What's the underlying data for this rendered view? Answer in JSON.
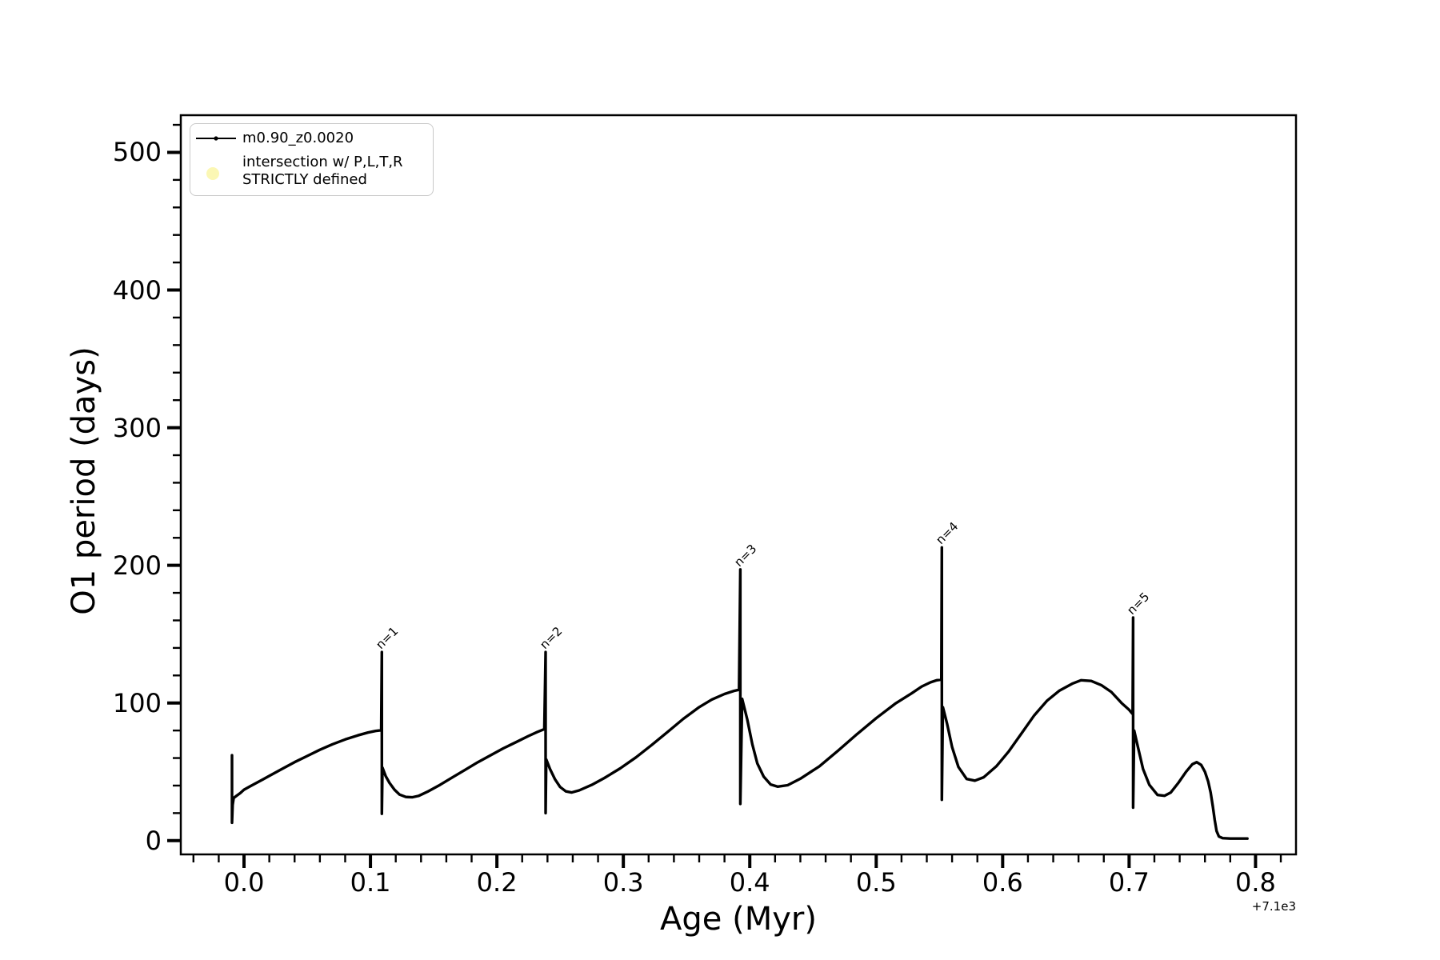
{
  "chart_data": {
    "type": "line",
    "title": "",
    "xlabel": "Age (Myr)",
    "ylabel": "O1 period (days)",
    "x_offset_text": "+7.1e3",
    "xlim": [
      -0.05,
      0.832
    ],
    "ylim": [
      -10,
      527
    ],
    "grid": false,
    "legend_position": "upper left",
    "x_ticks": [
      {
        "v": 0.0,
        "label": "0.0"
      },
      {
        "v": 0.1,
        "label": "0.1"
      },
      {
        "v": 0.2,
        "label": "0.2"
      },
      {
        "v": 0.3,
        "label": "0.3"
      },
      {
        "v": 0.4,
        "label": "0.4"
      },
      {
        "v": 0.5,
        "label": "0.5"
      },
      {
        "v": 0.6,
        "label": "0.6"
      },
      {
        "v": 0.7,
        "label": "0.7"
      },
      {
        "v": 0.8,
        "label": "0.8"
      }
    ],
    "y_ticks": [
      {
        "v": 0,
        "label": "0"
      },
      {
        "v": 100,
        "label": "100"
      },
      {
        "v": 200,
        "label": "200"
      },
      {
        "v": 300,
        "label": "300"
      },
      {
        "v": 400,
        "label": "400"
      },
      {
        "v": 500,
        "label": "500"
      }
    ],
    "x_minor": {
      "from": -0.04,
      "to": 0.82,
      "step": 0.02
    },
    "y_minor": {
      "from": 20,
      "to": 520,
      "step": 20
    },
    "legend": {
      "entries": [
        {
          "type": "line-dot",
          "label": "m0.90_z0.0020",
          "color": "#000000"
        },
        {
          "type": "circle",
          "label_line1": "intersection w/ P,L,T,R",
          "label_line2": "STRICTLY defined",
          "color": "#fbf7b4"
        }
      ]
    },
    "annotations": [
      {
        "label": "n=1",
        "x": 0.109,
        "y": 137
      },
      {
        "label": "n=2",
        "x": 0.2385,
        "y": 137
      },
      {
        "label": "n=3",
        "x": 0.3925,
        "y": 197
      },
      {
        "label": "n=4",
        "x": 0.5519,
        "y": 213
      },
      {
        "label": "n=5",
        "x": 0.7032,
        "y": 162
      }
    ],
    "series": [
      {
        "name": "m0.90_z0.0020",
        "color": "#000000",
        "points": [
          [
            -0.0095,
            62
          ],
          [
            -0.0095,
            13
          ],
          [
            -0.009,
            26
          ],
          [
            -0.0082,
            31
          ],
          [
            -0.006,
            32.5
          ],
          [
            -0.003,
            34.5
          ],
          [
            0,
            37
          ],
          [
            0.005,
            39.5
          ],
          [
            0.01,
            42
          ],
          [
            0.015,
            44.5
          ],
          [
            0.02,
            47
          ],
          [
            0.03,
            52
          ],
          [
            0.04,
            57
          ],
          [
            0.05,
            61.5
          ],
          [
            0.06,
            66
          ],
          [
            0.07,
            70
          ],
          [
            0.08,
            73.5
          ],
          [
            0.09,
            76.5
          ],
          [
            0.098,
            78.5
          ],
          [
            0.104,
            79.7
          ],
          [
            0.1085,
            80.2
          ],
          [
            0.109,
            137
          ],
          [
            0.109,
            19.5
          ],
          [
            0.1095,
            53
          ],
          [
            0.112,
            47
          ],
          [
            0.115,
            42
          ],
          [
            0.119,
            37
          ],
          [
            0.123,
            33.5
          ],
          [
            0.128,
            31.7
          ],
          [
            0.133,
            31.5
          ],
          [
            0.138,
            32.5
          ],
          [
            0.145,
            35.5
          ],
          [
            0.155,
            40.5
          ],
          [
            0.165,
            46
          ],
          [
            0.175,
            51.5
          ],
          [
            0.185,
            57
          ],
          [
            0.195,
            62
          ],
          [
            0.205,
            67
          ],
          [
            0.215,
            71.5
          ],
          [
            0.225,
            76
          ],
          [
            0.232,
            79
          ],
          [
            0.2375,
            81
          ],
          [
            0.2385,
            137
          ],
          [
            0.2385,
            20
          ],
          [
            0.239,
            59
          ],
          [
            0.242,
            52
          ],
          [
            0.246,
            44.5
          ],
          [
            0.25,
            39
          ],
          [
            0.2545,
            35.8
          ],
          [
            0.259,
            35
          ],
          [
            0.265,
            36.5
          ],
          [
            0.275,
            40.5
          ],
          [
            0.285,
            45.5
          ],
          [
            0.2975,
            52.5
          ],
          [
            0.31,
            60.5
          ],
          [
            0.3225,
            69.5
          ],
          [
            0.335,
            79
          ],
          [
            0.3475,
            88.5
          ],
          [
            0.36,
            97
          ],
          [
            0.37,
            102.5
          ],
          [
            0.38,
            106.5
          ],
          [
            0.3875,
            108.8
          ],
          [
            0.3915,
            109.6
          ],
          [
            0.3925,
            197
          ],
          [
            0.3925,
            26.7
          ],
          [
            0.394,
            103
          ],
          [
            0.398,
            88
          ],
          [
            0.402,
            70
          ],
          [
            0.406,
            56
          ],
          [
            0.411,
            46.5
          ],
          [
            0.4165,
            40.8
          ],
          [
            0.422,
            39.2
          ],
          [
            0.43,
            40.3
          ],
          [
            0.44,
            45
          ],
          [
            0.455,
            54
          ],
          [
            0.47,
            65.5
          ],
          [
            0.485,
            77.5
          ],
          [
            0.5,
            89
          ],
          [
            0.515,
            99.5
          ],
          [
            0.528,
            107
          ],
          [
            0.536,
            112
          ],
          [
            0.543,
            115
          ],
          [
            0.548,
            116.5
          ],
          [
            0.5515,
            117
          ],
          [
            0.5519,
            213
          ],
          [
            0.5519,
            29.7
          ],
          [
            0.5527,
            97
          ],
          [
            0.556,
            85
          ],
          [
            0.56,
            68
          ],
          [
            0.565,
            53.5
          ],
          [
            0.5715,
            44.8
          ],
          [
            0.578,
            43.6
          ],
          [
            0.585,
            46
          ],
          [
            0.595,
            54
          ],
          [
            0.605,
            65
          ],
          [
            0.615,
            78
          ],
          [
            0.625,
            91
          ],
          [
            0.635,
            101.5
          ],
          [
            0.645,
            109
          ],
          [
            0.655,
            114
          ],
          [
            0.662,
            116.5
          ],
          [
            0.67,
            116
          ],
          [
            0.678,
            113
          ],
          [
            0.686,
            108
          ],
          [
            0.694,
            100
          ],
          [
            0.7,
            95
          ],
          [
            0.7028,
            92
          ],
          [
            0.7032,
            162
          ],
          [
            0.7032,
            24
          ],
          [
            0.704,
            80
          ],
          [
            0.707,
            68
          ],
          [
            0.711,
            52
          ],
          [
            0.716,
            40.5
          ],
          [
            0.7225,
            33.2
          ],
          [
            0.728,
            32.6
          ],
          [
            0.733,
            35
          ],
          [
            0.739,
            42
          ],
          [
            0.745,
            50
          ],
          [
            0.75,
            55.5
          ],
          [
            0.7535,
            57
          ],
          [
            0.757,
            55
          ],
          [
            0.76,
            50
          ],
          [
            0.7625,
            43
          ],
          [
            0.7645,
            35
          ],
          [
            0.7662,
            25
          ],
          [
            0.7677,
            15
          ],
          [
            0.7692,
            7
          ],
          [
            0.771,
            3
          ],
          [
            0.774,
            1.8
          ],
          [
            0.78,
            1.5
          ],
          [
            0.7935,
            1.5
          ]
        ]
      }
    ]
  }
}
